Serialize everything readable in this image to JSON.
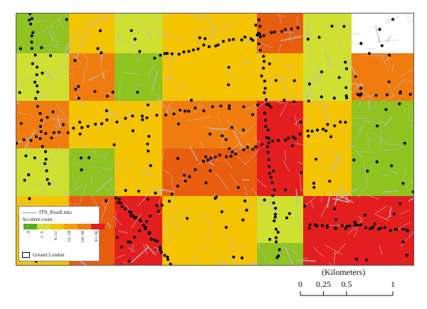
{
  "map": {
    "grid_rows": [
      [
        "#8fc31f",
        "#f5c400",
        "#cfe031",
        "#f5c400",
        "#e95d0f",
        "#cfe031",
        "#ffffff"
      ],
      [
        "#cfe031",
        "#f07c10",
        "#8fc31f",
        "#f5c400",
        "#f5c400",
        "#cfe031",
        "#f07c10"
      ],
      [
        "#f07c10",
        "#f5c400",
        "#f5c400",
        "#f07c10",
        "#e41e1e",
        "#f5c400",
        "#8fc31f"
      ],
      [
        "#cfe031",
        "#8fc31f",
        "#f5c400",
        "#e95d0f",
        "#e41e1e",
        "#f5c400",
        "#8fc31f"
      ],
      [
        "#f5c400",
        "#e95d0f",
        "#e41e1e",
        "#f5c400",
        "#cfe031",
        "#e41e1e",
        "#e41e1e"
      ],
      [
        "#f5c400",
        "#e95d0f",
        "#e41e1e",
        "#f5c400",
        "#8fc31f",
        "#e41e1e",
        "#e41e1e"
      ]
    ],
    "point_color": "#000000",
    "road_color": "#bdbdbd"
  },
  "legend": {
    "road_label": "ITN_RoadLinks",
    "title": "Accident count",
    "classes": [
      {
        "label": "0",
        "color": "#5aab1e"
      },
      {
        "label": "1–5",
        "color": "#cfe031"
      },
      {
        "label": "6–11",
        "color": "#f5c400"
      },
      {
        "label": "12–18",
        "color": "#f5a000"
      },
      {
        "label": "19–30",
        "color": "#f07c10"
      },
      {
        "label": "31–56",
        "color": "#e41e1e"
      }
    ],
    "boundary_label": "Greater London"
  },
  "scale": {
    "unit": "(Kilometers)",
    "ticks": [
      {
        "label": "0",
        "value": 0
      },
      {
        "label": "0.25",
        "value": 0.25
      },
      {
        "label": "0.5",
        "value": 0.5
      },
      {
        "label": "1",
        "value": 1
      }
    ]
  }
}
